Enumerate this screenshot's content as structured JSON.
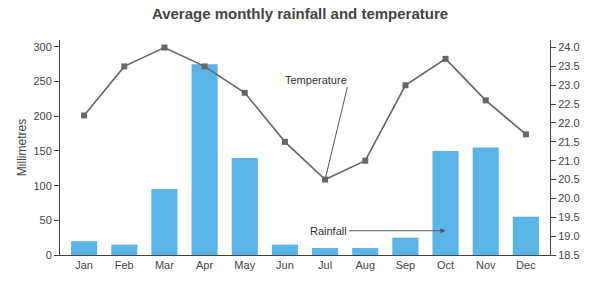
{
  "chart_data": {
    "type": "bar",
    "title": "Average monthly rainfall and temperature",
    "categories": [
      "Jan",
      "Feb",
      "Mar",
      "Apr",
      "May",
      "Jun",
      "Jul",
      "Aug",
      "Sep",
      "Oct",
      "Nov",
      "Dec"
    ],
    "ylabel": "Millimetres",
    "series": [
      {
        "type": "bar",
        "color": "#5ab4e5",
        "values": [
          20,
          15,
          95,
          275,
          140,
          15,
          10,
          10,
          25,
          150,
          155,
          55
        ]
      },
      {
        "type": "line",
        "axis": "y2",
        "color": "#666666",
        "marker": "square",
        "values": [
          22.2,
          23.5,
          24.0,
          23.5,
          22.8,
          21.5,
          20.5,
          21.0,
          23.0,
          23.7,
          22.6,
          21.7
        ]
      }
    ],
    "ylim": [
      0,
      310
    ],
    "yticks": [
      0,
      50,
      100,
      150,
      200,
      250,
      300
    ],
    "y2lim": [
      18.5,
      24.2
    ],
    "y2ticks": [
      18.5,
      {
        "value": 19,
        "label": "19.0"
      },
      19.5,
      {
        "value": 20,
        "label": "20.0"
      },
      20.5,
      {
        "value": 21,
        "label": "21.0"
      },
      21.5,
      {
        "value": 22,
        "label": "22.0"
      },
      22.5,
      {
        "value": 23,
        "label": "23.0"
      },
      23.5,
      {
        "value": 24,
        "label": "24.0"
      }
    ],
    "grid": false,
    "annotations": [
      "Temperature",
      "Rainfall"
    ]
  }
}
